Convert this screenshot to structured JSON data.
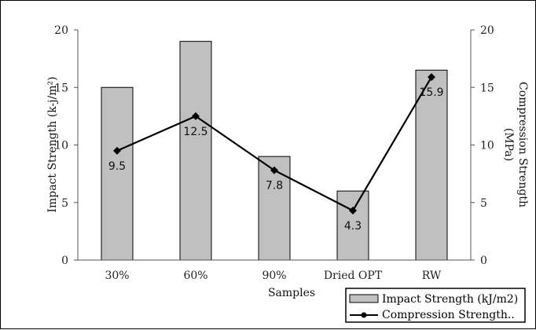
{
  "chart_data": {
    "type": "bar",
    "title": "",
    "categories": [
      "30%",
      "60%",
      "90%",
      "Dried OPT",
      "RW"
    ],
    "xlabel": "Samples",
    "ylabel": "Impact Strength (k-j/m²)",
    "y2label_line1": "Compression Strength",
    "y2label_line2": "(MPa)",
    "ylim": [
      0,
      20
    ],
    "y2lim": [
      0,
      20
    ],
    "yticks": [
      0,
      5,
      10,
      15,
      20
    ],
    "grid": false,
    "legend_position": "bottom-right",
    "series": [
      {
        "name": "Impact Strength (kJ/m2)",
        "type": "bar",
        "axis": "left",
        "color": "#c0c0c0",
        "values": [
          15,
          19,
          9,
          6,
          16.5
        ]
      },
      {
        "name": "Compression Strength..",
        "type": "line",
        "axis": "right",
        "color": "#000000",
        "marker": "diamond",
        "values": [
          9.5,
          12.5,
          7.8,
          4.3,
          15.9
        ],
        "labels": [
          "9.5",
          "12.5",
          "7.8",
          "4.3",
          "15.9"
        ]
      }
    ]
  }
}
